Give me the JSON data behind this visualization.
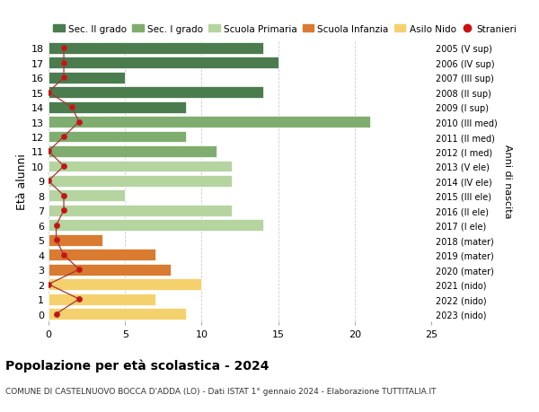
{
  "ages": [
    18,
    17,
    16,
    15,
    14,
    13,
    12,
    11,
    10,
    9,
    8,
    7,
    6,
    5,
    4,
    3,
    2,
    1,
    0
  ],
  "bar_values": [
    14,
    15,
    5,
    14,
    9,
    21,
    9,
    11,
    12,
    12,
    5,
    12,
    14,
    3.5,
    7,
    8,
    10,
    7,
    9
  ],
  "bar_colors": [
    "#4a7c4e",
    "#4a7c4e",
    "#4a7c4e",
    "#4a7c4e",
    "#4a7c4e",
    "#7fad6f",
    "#7fad6f",
    "#7fad6f",
    "#b5d4a0",
    "#b5d4a0",
    "#b5d4a0",
    "#b5d4a0",
    "#b5d4a0",
    "#d97b30",
    "#d97b30",
    "#d97b30",
    "#f5d16e",
    "#f5d16e",
    "#f5d16e"
  ],
  "right_labels": [
    "2005 (V sup)",
    "2006 (IV sup)",
    "2007 (III sup)",
    "2008 (II sup)",
    "2009 (I sup)",
    "2010 (III med)",
    "2011 (II med)",
    "2012 (I med)",
    "2013 (V ele)",
    "2014 (IV ele)",
    "2015 (III ele)",
    "2016 (II ele)",
    "2017 (I ele)",
    "2018 (mater)",
    "2019 (mater)",
    "2020 (mater)",
    "2021 (nido)",
    "2022 (nido)",
    "2023 (nido)"
  ],
  "legend_labels": [
    "Sec. II grado",
    "Sec. I grado",
    "Scuola Primaria",
    "Scuola Infanzia",
    "Asilo Nido",
    "Stranieri"
  ],
  "legend_colors": [
    "#4a7c4e",
    "#7fad6f",
    "#b5d4a0",
    "#d97b30",
    "#f5d16e",
    "#cc1111"
  ],
  "ylabel_left": "Età alunni",
  "ylabel_right": "Anni di nascita",
  "title": "Popolazione per età scolastica - 2024",
  "subtitle": "COMUNE DI CASTELNUOVO BOCCA D'ADDA (LO) - Dati ISTAT 1° gennaio 2024 - Elaborazione TUTTITALIA.IT",
  "xlim": [
    0,
    25
  ],
  "xticks": [
    0,
    5,
    10,
    15,
    20,
    25
  ],
  "background_color": "#ffffff",
  "stranieri_x": [
    1,
    1,
    1,
    0,
    1.5,
    2,
    1,
    0,
    1,
    0,
    1,
    1,
    0.5,
    0.5,
    1,
    2,
    0,
    2,
    0.5
  ]
}
